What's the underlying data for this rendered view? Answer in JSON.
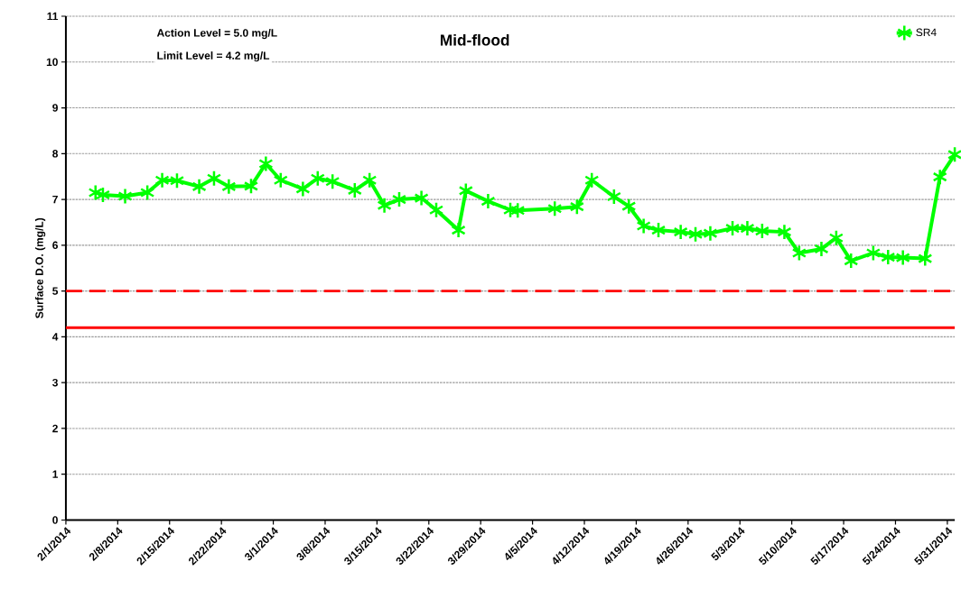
{
  "chart_data": {
    "type": "line",
    "title": "Mid-flood",
    "ylabel": "Surface D.O. (mg/L)",
    "annotations": [
      "Action Level = 5.0 mg/L",
      "Limit Level = 4.2 mg/L"
    ],
    "x": [
      "2014-02-05",
      "2014-02-06",
      "2014-02-09",
      "2014-02-12",
      "2014-02-14",
      "2014-02-16",
      "2014-02-19",
      "2014-02-21",
      "2014-02-23",
      "2014-02-26",
      "2014-02-28",
      "2014-03-02",
      "2014-03-05",
      "2014-03-07",
      "2014-03-09",
      "2014-03-12",
      "2014-03-14",
      "2014-03-16",
      "2014-03-18",
      "2014-03-21",
      "2014-03-23",
      "2014-03-26",
      "2014-03-27",
      "2014-03-30",
      "2014-04-02",
      "2014-04-03",
      "2014-04-08",
      "2014-04-11",
      "2014-04-13",
      "2014-04-16",
      "2014-04-18",
      "2014-04-20",
      "2014-04-22",
      "2014-04-25",
      "2014-04-27",
      "2014-04-29",
      "2014-05-02",
      "2014-05-04",
      "2014-05-06",
      "2014-05-09",
      "2014-05-11",
      "2014-05-14",
      "2014-05-16",
      "2014-05-18",
      "2014-05-21",
      "2014-05-23",
      "2014-05-25",
      "2014-05-28",
      "2014-05-30",
      "2014-06-01"
    ],
    "series": [
      {
        "name": "SR4",
        "color": "#00ff00",
        "values": [
          7.15,
          7.1,
          7.07,
          7.15,
          7.42,
          7.41,
          7.28,
          7.46,
          7.28,
          7.29,
          7.78,
          7.42,
          7.23,
          7.46,
          7.39,
          7.2,
          7.42,
          6.87,
          7.0,
          7.03,
          6.77,
          6.33,
          7.19,
          6.96,
          6.77,
          6.76,
          6.8,
          6.84,
          7.42,
          7.06,
          6.85,
          6.42,
          6.33,
          6.29,
          6.24,
          6.26,
          6.37,
          6.37,
          6.31,
          6.29,
          5.83,
          5.92,
          6.16,
          5.66,
          5.83,
          5.74,
          5.73,
          5.71,
          7.49,
          7.98
        ]
      }
    ],
    "xlim": [
      "2014-02-01",
      "2014-06-01"
    ],
    "xticks": [
      {
        "value": "2014-02-01",
        "label": "2/1/2014"
      },
      {
        "value": "2014-02-08",
        "label": "2/8/2014"
      },
      {
        "value": "2014-02-15",
        "label": "2/15/2014"
      },
      {
        "value": "2014-02-22",
        "label": "2/22/2014"
      },
      {
        "value": "2014-03-01",
        "label": "3/1/2014"
      },
      {
        "value": "2014-03-08",
        "label": "3/8/2014"
      },
      {
        "value": "2014-03-15",
        "label": "3/15/2014"
      },
      {
        "value": "2014-03-22",
        "label": "3/22/2014"
      },
      {
        "value": "2014-03-29",
        "label": "3/29/2014"
      },
      {
        "value": "2014-04-05",
        "label": "4/5/2014"
      },
      {
        "value": "2014-04-12",
        "label": "4/12/2014"
      },
      {
        "value": "2014-04-19",
        "label": "4/19/2014"
      },
      {
        "value": "2014-04-26",
        "label": "4/26/2014"
      },
      {
        "value": "2014-05-03",
        "label": "5/3/2014"
      },
      {
        "value": "2014-05-10",
        "label": "5/10/2014"
      },
      {
        "value": "2014-05-17",
        "label": "5/17/2014"
      },
      {
        "value": "2014-05-24",
        "label": "5/24/2014"
      },
      {
        "value": "2014-05-31",
        "label": "5/31/2014"
      }
    ],
    "ylim": [
      0,
      11
    ],
    "yticks": [
      0,
      1,
      2,
      3,
      4,
      5,
      6,
      7,
      8,
      9,
      10,
      11
    ],
    "ref_lines": [
      {
        "axis": "y",
        "value": 5.0,
        "color": "#ff0000",
        "line_style": "dashed"
      },
      {
        "axis": "y",
        "value": 4.2,
        "color": "#ff0000",
        "line_style": "solid"
      }
    ],
    "grid": "y",
    "legend": "top right",
    "marker": "cross",
    "line_style": "solid"
  }
}
